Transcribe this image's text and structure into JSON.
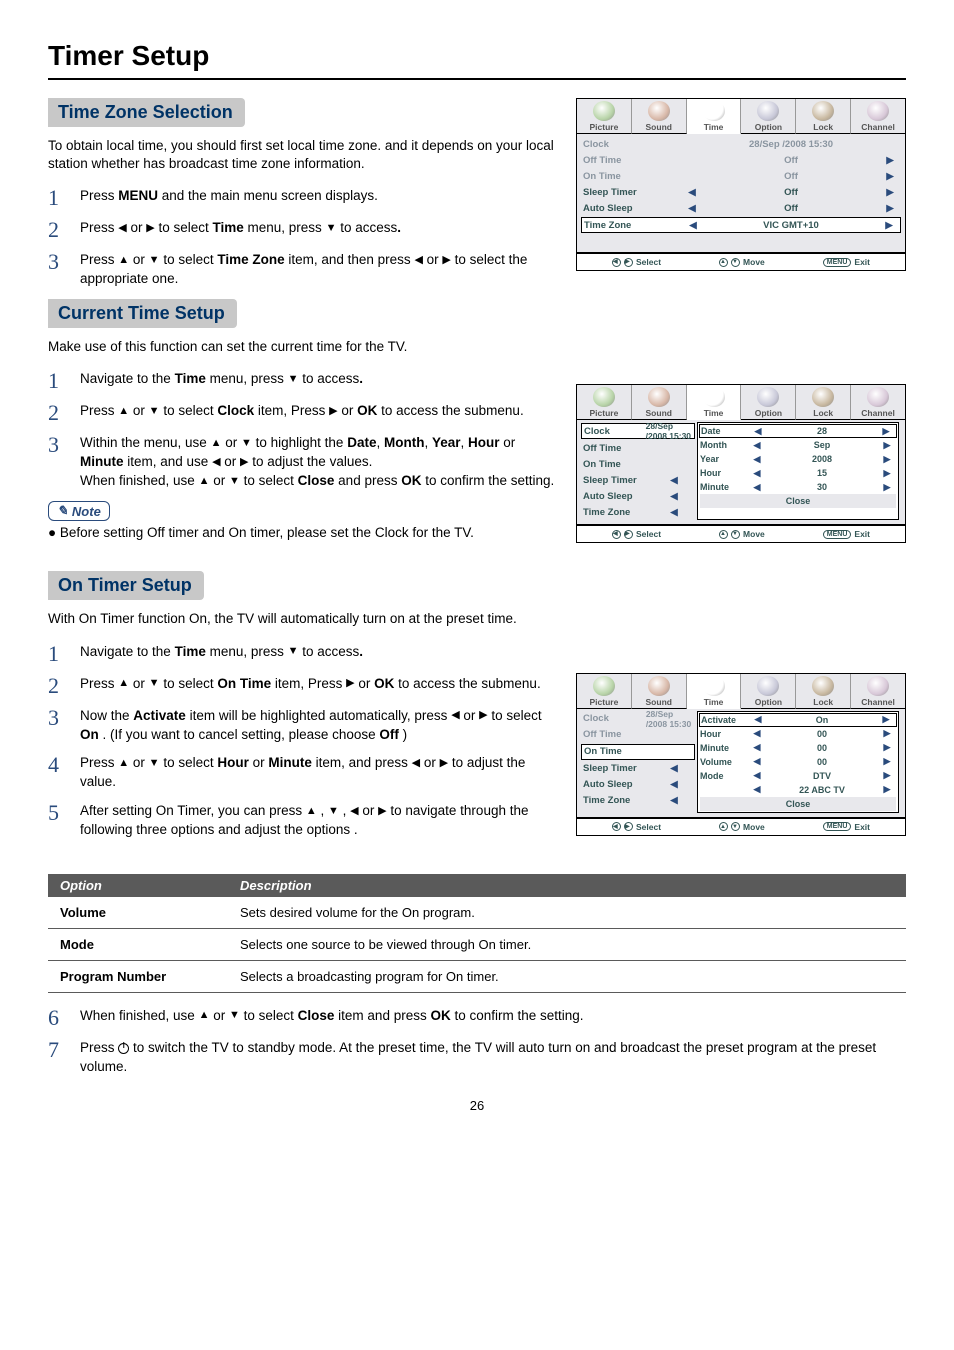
{
  "page_title": "Timer Setup",
  "page_number": "26",
  "osd_tabs": [
    "Picture",
    "Sound",
    "Time",
    "Option",
    "Lock",
    "Channel"
  ],
  "osd_tab_colors": [
    "#b8d4a8",
    "#d8b8a8",
    "#ffffff",
    "#c8c8d8",
    "#c8b8a0",
    "#d8c8d8"
  ],
  "osd_footer": {
    "select": "Select",
    "move": "Move",
    "exit": "Exit",
    "menu": "MENU"
  },
  "section_time_zone": {
    "header": "Time Zone Selection",
    "intro": "To obtain local time, you should first set local time zone. and it depends on your local station whether has broadcast time zone information.",
    "steps": [
      {
        "n": "1",
        "text_parts": [
          "Press ",
          "MENU",
          " and the main menu screen displays."
        ]
      },
      {
        "n": "2",
        "text_parts": [
          "Press ◀ or ▶ to select ",
          "Time",
          " menu,  press ▼  to access",
          "."
        ]
      },
      {
        "n": "3",
        "text_parts": [
          "Press ▲ or ▼  to select ",
          "Time Zone",
          " item, and then press  ◀ or ▶ to select the appropriate one."
        ]
      }
    ],
    "osd": {
      "rows": [
        {
          "label": "Clock",
          "val": "28/Sep  /2008 15:30",
          "arrows": false,
          "muted": true
        },
        {
          "label": "Off Time",
          "val": "Off",
          "arrows": "r",
          "muted": true
        },
        {
          "label": "On Time",
          "val": "Off",
          "arrows": "r",
          "muted": true
        },
        {
          "label": "Sleep Timer",
          "val": "Off",
          "arrows": "lr",
          "muted": false
        },
        {
          "label": "Auto Sleep",
          "val": "Off",
          "arrows": "lr",
          "muted": false
        },
        {
          "label": "Time Zone",
          "val": "VIC GMT+10",
          "arrows": "lr",
          "muted": false,
          "highlight": true
        }
      ]
    }
  },
  "section_current_time": {
    "header": "Current Time Setup",
    "intro": "Make use of this function can set the current time for the TV.",
    "steps": [
      {
        "n": "1",
        "text_parts": [
          "Navigate to the ",
          "Time",
          " menu,  press ▼  to access",
          "."
        ]
      },
      {
        "n": "2",
        "text_parts": [
          "Press  ▲ or ▼   to select ",
          "Clock",
          " item, Press ▶ or  ",
          "OK",
          " to access the submenu."
        ]
      },
      {
        "n": "3",
        "text_parts": [
          "Within the menu, use  ▲ or ▼  to highlight the  ",
          "Date",
          ", ",
          "Month",
          ", ",
          "Year",
          ", ",
          "Hour",
          " or ",
          "Minute",
          "  item, and use  ◀ or ▶  to adjust the values.\nWhen finished, use  ▲ or ▼  to select ",
          "Close",
          " and press ",
          "OK",
          " to confirm the setting."
        ]
      }
    ],
    "note_label": "Note",
    "note_text": "Before setting Off timer and On timer, please set the Clock for the TV.",
    "osd": {
      "rows": [
        {
          "label": "Clock",
          "val": "28/Sep  /2008 15:30",
          "highlight": true
        },
        {
          "label": "Off Time"
        },
        {
          "label": "On Time"
        },
        {
          "label": "Sleep Timer",
          "arrows": "l"
        },
        {
          "label": "Auto Sleep",
          "arrows": "l"
        },
        {
          "label": "Time Zone",
          "arrows": "l"
        }
      ],
      "sub": [
        {
          "label": "Date",
          "val": "28",
          "highlight": true
        },
        {
          "label": "Month",
          "val": "Sep"
        },
        {
          "label": "Year",
          "val": "2008"
        },
        {
          "label": "Hour",
          "val": "15"
        },
        {
          "label": "Minute",
          "val": "30"
        }
      ],
      "sub_close": "Close"
    }
  },
  "section_on_timer": {
    "header": "On Timer Setup",
    "intro": "With On Timer function On, the TV will automatically turn on at the preset time.",
    "steps": [
      {
        "n": "1",
        "text_parts": [
          "Navigate to the ",
          "Time",
          " menu,  press ▼  to access",
          "."
        ]
      },
      {
        "n": "2",
        "text_parts": [
          "Press ▲ or ▼  to select  ",
          "On Time",
          " item, Press  ▶ or  ",
          "OK",
          " to access the submenu."
        ]
      },
      {
        "n": "3",
        "text_parts": [
          "Now the ",
          "Activate",
          " item will be highlighted automatically, press      ◀ or ▶ to select ",
          "On",
          " . (If you want to cancel setting, please choose ",
          "Off",
          " )"
        ]
      },
      {
        "n": "4",
        "text_parts": [
          "Press ▲ or ▼  to select  ",
          "Hour",
          " or ",
          "Minute",
          " item, and press  ◀ or ▶ to adjust the value."
        ]
      },
      {
        "n": "5",
        "text_parts": [
          "After setting On Timer, you can press  ▲ , ▼ , ◀ or ▶ to navigate through the following three options and adjust the options ."
        ]
      }
    ],
    "osd": {
      "rows": [
        {
          "label": "Clock",
          "val": "28/Sep  /2008 15:30",
          "muted": true
        },
        {
          "label": "Off Time",
          "muted": true
        },
        {
          "label": "On Time",
          "highlight": true
        },
        {
          "label": "Sleep Timer",
          "arrows": "l"
        },
        {
          "label": "Auto Sleep",
          "arrows": "l"
        },
        {
          "label": "Time Zone",
          "arrows": "l"
        }
      ],
      "sub": [
        {
          "label": "Activate",
          "val": "On",
          "highlight": true
        },
        {
          "label": "Hour",
          "val": "00"
        },
        {
          "label": "Minute",
          "val": "00"
        },
        {
          "label": "Volume",
          "val": "00"
        },
        {
          "label": "Mode",
          "val": "DTV"
        },
        {
          "label": "",
          "val": "22 ABC TV"
        }
      ],
      "sub_close": "Close"
    },
    "table_headers": [
      "Option",
      "Description"
    ],
    "table_rows": [
      [
        "Volume",
        "Sets desired volume for the On program."
      ],
      [
        "Mode",
        "Selects one source to be viewed through On timer."
      ],
      [
        "Program Number",
        "Selects a broadcasting program for On timer."
      ]
    ],
    "step6": {
      "n": "6",
      "text_parts": [
        "When finished, use  ▲ or ▼  to select ",
        "Close",
        " item and press ",
        "OK",
        " to confirm the setting."
      ]
    },
    "step7": {
      "n": "7",
      "text": " to switch the TV to standby mode. At the preset time, the TV will auto turn on and broadcast the preset program at the preset volume."
    }
  }
}
